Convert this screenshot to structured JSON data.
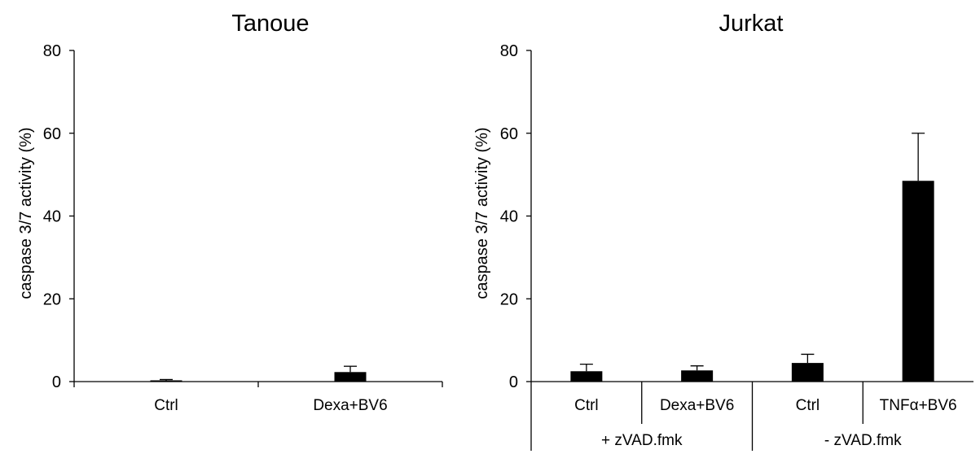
{
  "chart_data": [
    {
      "type": "bar",
      "title": "Tanoue",
      "ylabel": "caspase 3/7 activity (%)",
      "xlabel": "",
      "ylim": [
        0,
        80
      ],
      "yticks": [
        "0",
        "20",
        "40",
        "60",
        "80"
      ],
      "categories": [
        "Ctrl",
        "Dexa+BV6"
      ],
      "values": [
        0.3,
        2.3
      ],
      "errors": [
        0.2,
        1.4
      ],
      "bar_color": "#000000",
      "grid": false
    },
    {
      "type": "bar",
      "title": "Jurkat",
      "ylabel": "caspase 3/7 activity (%)",
      "xlabel": "",
      "ylim": [
        0,
        80
      ],
      "yticks": [
        "0",
        "20",
        "40",
        "60",
        "80"
      ],
      "categories": [
        "Ctrl",
        "Dexa+BV6",
        "Ctrl",
        "TNFα+BV6"
      ],
      "values": [
        2.5,
        2.7,
        4.5,
        48.5
      ],
      "errors": [
        1.7,
        1.1,
        2.1,
        11.5
      ],
      "groups": [
        {
          "label": "+ zVAD.fmk",
          "span": [
            0,
            1
          ]
        },
        {
          "label": "- zVAD.fmk",
          "span": [
            2,
            3
          ]
        }
      ],
      "bar_color": "#000000",
      "grid": false
    }
  ]
}
